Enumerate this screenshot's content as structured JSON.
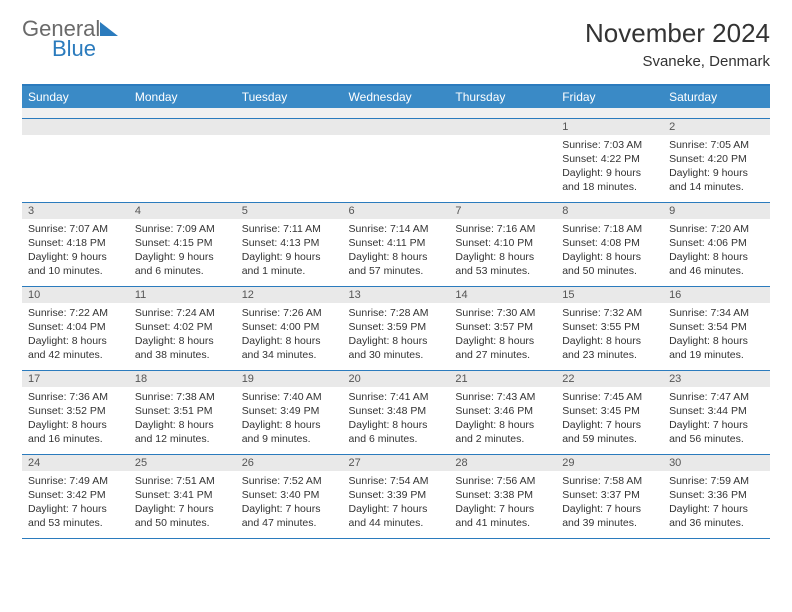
{
  "logo": {
    "text1": "General",
    "text2": "Blue"
  },
  "title": "November 2024",
  "location": "Svaneke, Denmark",
  "header_bg": "#3a8ac6",
  "accent": "#2b7bbd",
  "daynum_bg": "#e9e9e9",
  "weekdays": [
    "Sunday",
    "Monday",
    "Tuesday",
    "Wednesday",
    "Thursday",
    "Friday",
    "Saturday"
  ],
  "weeks": [
    [
      null,
      null,
      null,
      null,
      null,
      {
        "day": "1",
        "sunrise": "7:03 AM",
        "sunset": "4:22 PM",
        "daylight": "9 hours and 18 minutes."
      },
      {
        "day": "2",
        "sunrise": "7:05 AM",
        "sunset": "4:20 PM",
        "daylight": "9 hours and 14 minutes."
      }
    ],
    [
      {
        "day": "3",
        "sunrise": "7:07 AM",
        "sunset": "4:18 PM",
        "daylight": "9 hours and 10 minutes."
      },
      {
        "day": "4",
        "sunrise": "7:09 AM",
        "sunset": "4:15 PM",
        "daylight": "9 hours and 6 minutes."
      },
      {
        "day": "5",
        "sunrise": "7:11 AM",
        "sunset": "4:13 PM",
        "daylight": "9 hours and 1 minute."
      },
      {
        "day": "6",
        "sunrise": "7:14 AM",
        "sunset": "4:11 PM",
        "daylight": "8 hours and 57 minutes."
      },
      {
        "day": "7",
        "sunrise": "7:16 AM",
        "sunset": "4:10 PM",
        "daylight": "8 hours and 53 minutes."
      },
      {
        "day": "8",
        "sunrise": "7:18 AM",
        "sunset": "4:08 PM",
        "daylight": "8 hours and 50 minutes."
      },
      {
        "day": "9",
        "sunrise": "7:20 AM",
        "sunset": "4:06 PM",
        "daylight": "8 hours and 46 minutes."
      }
    ],
    [
      {
        "day": "10",
        "sunrise": "7:22 AM",
        "sunset": "4:04 PM",
        "daylight": "8 hours and 42 minutes."
      },
      {
        "day": "11",
        "sunrise": "7:24 AM",
        "sunset": "4:02 PM",
        "daylight": "8 hours and 38 minutes."
      },
      {
        "day": "12",
        "sunrise": "7:26 AM",
        "sunset": "4:00 PM",
        "daylight": "8 hours and 34 minutes."
      },
      {
        "day": "13",
        "sunrise": "7:28 AM",
        "sunset": "3:59 PM",
        "daylight": "8 hours and 30 minutes."
      },
      {
        "day": "14",
        "sunrise": "7:30 AM",
        "sunset": "3:57 PM",
        "daylight": "8 hours and 27 minutes."
      },
      {
        "day": "15",
        "sunrise": "7:32 AM",
        "sunset": "3:55 PM",
        "daylight": "8 hours and 23 minutes."
      },
      {
        "day": "16",
        "sunrise": "7:34 AM",
        "sunset": "3:54 PM",
        "daylight": "8 hours and 19 minutes."
      }
    ],
    [
      {
        "day": "17",
        "sunrise": "7:36 AM",
        "sunset": "3:52 PM",
        "daylight": "8 hours and 16 minutes."
      },
      {
        "day": "18",
        "sunrise": "7:38 AM",
        "sunset": "3:51 PM",
        "daylight": "8 hours and 12 minutes."
      },
      {
        "day": "19",
        "sunrise": "7:40 AM",
        "sunset": "3:49 PM",
        "daylight": "8 hours and 9 minutes."
      },
      {
        "day": "20",
        "sunrise": "7:41 AM",
        "sunset": "3:48 PM",
        "daylight": "8 hours and 6 minutes."
      },
      {
        "day": "21",
        "sunrise": "7:43 AM",
        "sunset": "3:46 PM",
        "daylight": "8 hours and 2 minutes."
      },
      {
        "day": "22",
        "sunrise": "7:45 AM",
        "sunset": "3:45 PM",
        "daylight": "7 hours and 59 minutes."
      },
      {
        "day": "23",
        "sunrise": "7:47 AM",
        "sunset": "3:44 PM",
        "daylight": "7 hours and 56 minutes."
      }
    ],
    [
      {
        "day": "24",
        "sunrise": "7:49 AM",
        "sunset": "3:42 PM",
        "daylight": "7 hours and 53 minutes."
      },
      {
        "day": "25",
        "sunrise": "7:51 AM",
        "sunset": "3:41 PM",
        "daylight": "7 hours and 50 minutes."
      },
      {
        "day": "26",
        "sunrise": "7:52 AM",
        "sunset": "3:40 PM",
        "daylight": "7 hours and 47 minutes."
      },
      {
        "day": "27",
        "sunrise": "7:54 AM",
        "sunset": "3:39 PM",
        "daylight": "7 hours and 44 minutes."
      },
      {
        "day": "28",
        "sunrise": "7:56 AM",
        "sunset": "3:38 PM",
        "daylight": "7 hours and 41 minutes."
      },
      {
        "day": "29",
        "sunrise": "7:58 AM",
        "sunset": "3:37 PM",
        "daylight": "7 hours and 39 minutes."
      },
      {
        "day": "30",
        "sunrise": "7:59 AM",
        "sunset": "3:36 PM",
        "daylight": "7 hours and 36 minutes."
      }
    ]
  ],
  "labels": {
    "sunrise": "Sunrise:",
    "sunset": "Sunset:",
    "daylight": "Daylight:"
  }
}
